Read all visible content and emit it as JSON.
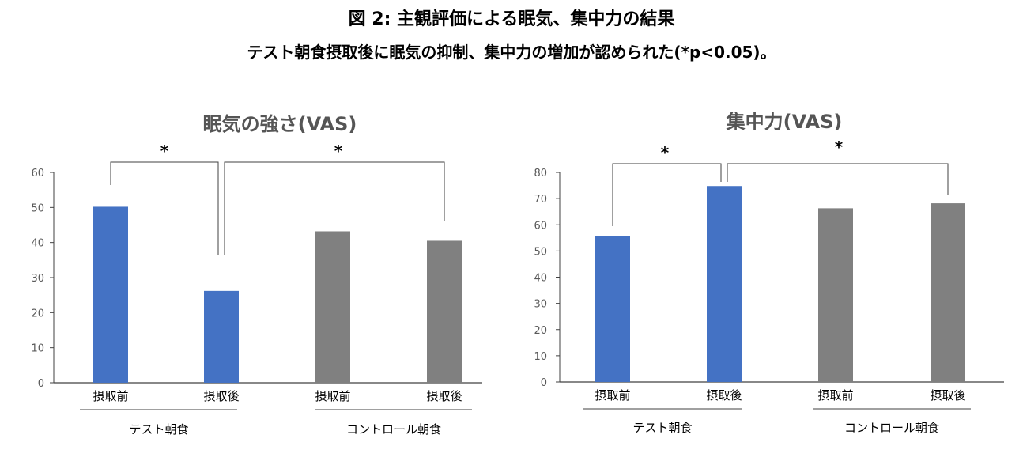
{
  "figure": {
    "title": "図 2:  主観評価による眠気、集中力の結果",
    "subtitle": "テスト朝食摂取後に眠気の抑制、集中力の増加が認められた(*p<0.05)。"
  },
  "colors": {
    "test": "#4472C4",
    "control": "#808080"
  },
  "chart_data": [
    {
      "type": "bar",
      "title": "眠気の強さ(VAS)",
      "categories": [
        "摂取前",
        "摂取後",
        "摂取前",
        "摂取後"
      ],
      "groups": [
        "テスト朝食",
        "コントロール朝食"
      ],
      "values": [
        50.2,
        26.2,
        43.2,
        40.5
      ],
      "bar_groups": [
        0,
        0,
        1,
        1
      ],
      "ylim": [
        0,
        60
      ],
      "yticks": [
        0,
        10,
        20,
        30,
        40,
        50,
        60
      ],
      "significance": [
        {
          "from": 0,
          "to": 1,
          "label": "*"
        },
        {
          "from": 1,
          "to": 3,
          "label": "*"
        }
      ]
    },
    {
      "type": "bar",
      "title": "集中力(VAS)",
      "categories": [
        "摂取前",
        "摂取後",
        "摂取前",
        "摂取後"
      ],
      "groups": [
        "テスト朝食",
        "コントロール朝食"
      ],
      "values": [
        55.8,
        74.8,
        66.3,
        68.2
      ],
      "bar_groups": [
        0,
        0,
        1,
        1
      ],
      "ylim": [
        0,
        80
      ],
      "yticks": [
        0,
        10,
        20,
        30,
        40,
        50,
        60,
        70,
        80
      ],
      "significance": [
        {
          "from": 0,
          "to": 1,
          "label": "*"
        },
        {
          "from": 1,
          "to": 3,
          "label": "*"
        }
      ]
    }
  ]
}
